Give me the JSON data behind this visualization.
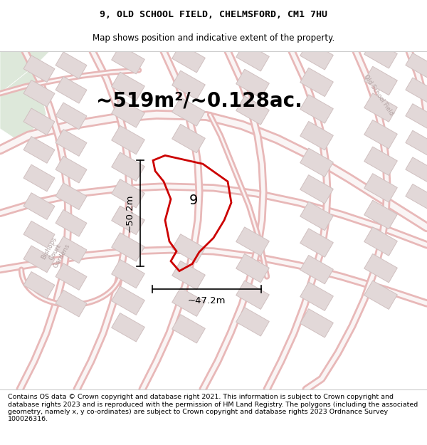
{
  "title_line1": "9, OLD SCHOOL FIELD, CHELMSFORD, CM1 7HU",
  "title_line2": "Map shows position and indicative extent of the property.",
  "area_text": "~519m²/~0.128ac.",
  "dim_width": "~47.2m",
  "dim_height": "~50.2m",
  "plot_number": "9",
  "footer_text": "Contains OS data © Crown copyright and database right 2021. This information is subject to Crown copyright and database rights 2023 and is reproduced with the permission of HM Land Registry. The polygons (including the associated geometry, namely x, y co-ordinates) are subject to Crown copyright and database rights 2023 Ordnance Survey 100026316.",
  "map_bg": "#f5f0f0",
  "green_color": "#dde8da",
  "road_outline_color": "#e8b8b8",
  "building_color": "#e2d8d8",
  "building_edge": "#d0c0c0",
  "plot_edge_color": "#cc0000",
  "title_fontsize": 9.5,
  "subtitle_fontsize": 8.5,
  "area_fontsize": 20,
  "dim_fontsize": 9.5,
  "footer_fontsize": 6.8,
  "street_label_color": "#b0a0a0"
}
